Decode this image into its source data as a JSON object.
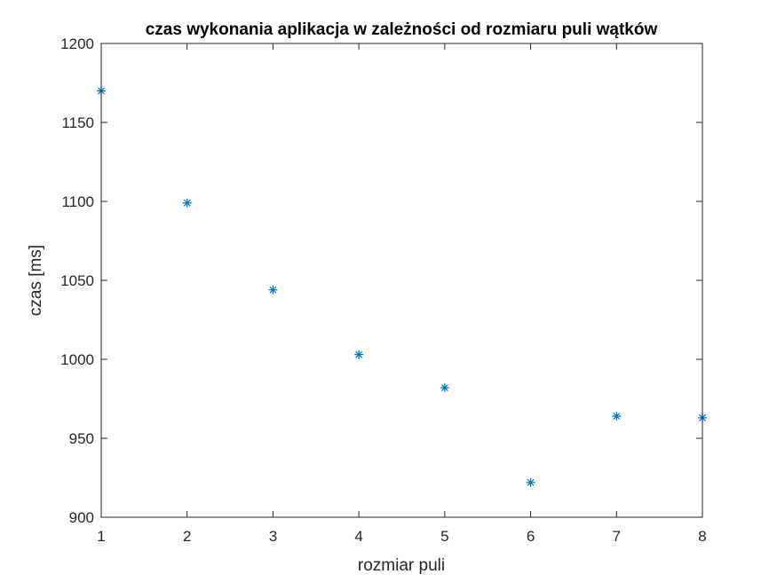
{
  "chart_data": {
    "type": "scatter",
    "title": "czas wykonania aplikacja w zależności od rozmiaru puli wątków",
    "xlabel": "rozmiar puli",
    "ylabel": "czas [ms]",
    "xlim": [
      1,
      8
    ],
    "ylim": [
      900,
      1200
    ],
    "xticks": [
      "1",
      "2",
      "3",
      "4",
      "5",
      "6",
      "7",
      "8"
    ],
    "yticks": [
      "900",
      "950",
      "1000",
      "1050",
      "1100",
      "1150",
      "1200"
    ],
    "grid": false,
    "marker": "asterisk",
    "series": [
      {
        "x": [
          1,
          2,
          3,
          4,
          5,
          6,
          7,
          8
        ],
        "y": [
          1170,
          1099,
          1044,
          1003,
          982,
          922,
          964,
          963
        ],
        "color": "#0072BD"
      }
    ]
  }
}
